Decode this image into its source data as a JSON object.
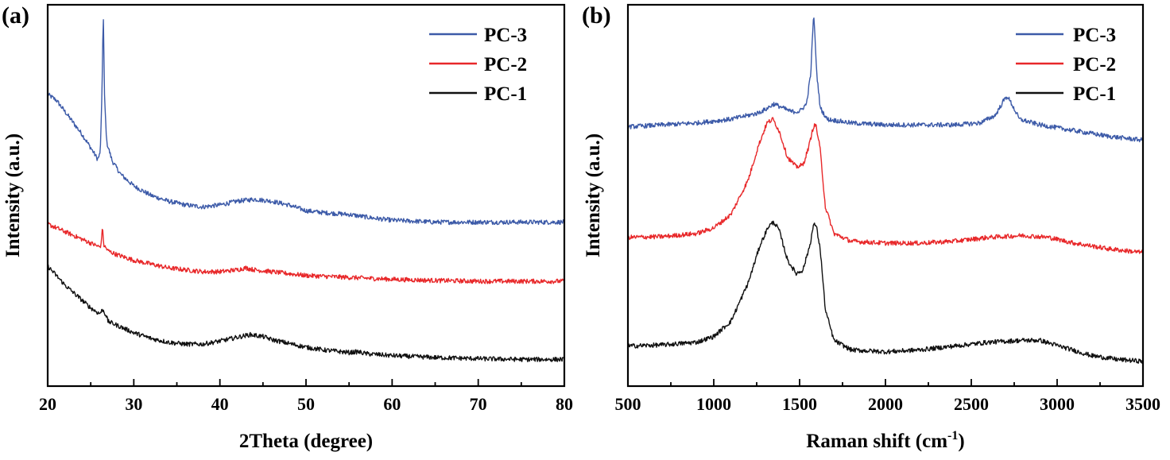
{
  "chart_data": [
    {
      "type": "line",
      "panel_label": "(a)",
      "title": "",
      "xlabel": "2Theta (degree)",
      "ylabel": "Intensity (a.u.)",
      "xlim": [
        20,
        80
      ],
      "ylim": [
        0,
        1
      ],
      "xticks": [
        20,
        30,
        40,
        50,
        60,
        70,
        80
      ],
      "xtick_labels": [
        "20",
        "30",
        "40",
        "50",
        "60",
        "70",
        "80"
      ],
      "legend_position": "top-right",
      "grid": false,
      "series": [
        {
          "name": "PC-3",
          "color": "#3c5aa8",
          "points": [
            [
              20,
              0.765
            ],
            [
              21,
              0.75
            ],
            [
              22,
              0.72
            ],
            [
              23,
              0.69
            ],
            [
              24,
              0.66
            ],
            [
              25,
              0.625
            ],
            [
              25.8,
              0.595
            ],
            [
              26.1,
              0.61
            ],
            [
              26.3,
              0.76
            ],
            [
              26.45,
              0.985
            ],
            [
              26.6,
              0.76
            ],
            [
              26.85,
              0.64
            ],
            [
              27.5,
              0.59
            ],
            [
              28.5,
              0.555
            ],
            [
              30,
              0.525
            ],
            [
              32,
              0.5
            ],
            [
              34,
              0.485
            ],
            [
              36,
              0.475
            ],
            [
              38,
              0.47
            ],
            [
              40,
              0.475
            ],
            [
              42,
              0.485
            ],
            [
              44,
              0.49
            ],
            [
              46,
              0.485
            ],
            [
              48,
              0.475
            ],
            [
              50,
              0.46
            ],
            [
              52,
              0.455
            ],
            [
              55,
              0.45
            ],
            [
              58,
              0.44
            ],
            [
              60,
              0.435
            ],
            [
              65,
              0.43
            ],
            [
              70,
              0.43
            ],
            [
              75,
              0.43
            ],
            [
              80,
              0.43
            ]
          ]
        },
        {
          "name": "PC-2",
          "color": "#e8282a",
          "points": [
            [
              20,
              0.425
            ],
            [
              21,
              0.415
            ],
            [
              22,
              0.405
            ],
            [
              23,
              0.395
            ],
            [
              24,
              0.385
            ],
            [
              25,
              0.375
            ],
            [
              26,
              0.365
            ],
            [
              26.2,
              0.37
            ],
            [
              26.35,
              0.42
            ],
            [
              26.5,
              0.37
            ],
            [
              27,
              0.355
            ],
            [
              28,
              0.345
            ],
            [
              30,
              0.33
            ],
            [
              32,
              0.32
            ],
            [
              34,
              0.31
            ],
            [
              36,
              0.305
            ],
            [
              38,
              0.3
            ],
            [
              40,
              0.3
            ],
            [
              42,
              0.305
            ],
            [
              43,
              0.31
            ],
            [
              44,
              0.305
            ],
            [
              46,
              0.3
            ],
            [
              48,
              0.295
            ],
            [
              50,
              0.29
            ],
            [
              55,
              0.285
            ],
            [
              60,
              0.28
            ],
            [
              65,
              0.277
            ],
            [
              70,
              0.275
            ],
            [
              75,
              0.275
            ],
            [
              80,
              0.275
            ]
          ]
        },
        {
          "name": "PC-1",
          "color": "#111111",
          "points": [
            [
              20,
              0.315
            ],
            [
              21,
              0.29
            ],
            [
              22,
              0.265
            ],
            [
              23,
              0.245
            ],
            [
              24,
              0.225
            ],
            [
              25,
              0.205
            ],
            [
              26,
              0.19
            ],
            [
              26.4,
              0.2
            ],
            [
              26.8,
              0.185
            ],
            [
              27,
              0.17
            ],
            [
              28,
              0.16
            ],
            [
              30,
              0.14
            ],
            [
              32,
              0.125
            ],
            [
              34,
              0.115
            ],
            [
              36,
              0.11
            ],
            [
              38,
              0.11
            ],
            [
              40,
              0.118
            ],
            [
              42,
              0.128
            ],
            [
              43.5,
              0.135
            ],
            [
              45,
              0.13
            ],
            [
              46,
              0.122
            ],
            [
              48,
              0.112
            ],
            [
              50,
              0.102
            ],
            [
              52,
              0.095
            ],
            [
              55,
              0.088
            ],
            [
              56,
              0.09
            ],
            [
              57,
              0.085
            ],
            [
              60,
              0.08
            ],
            [
              65,
              0.075
            ],
            [
              70,
              0.072
            ],
            [
              75,
              0.07
            ],
            [
              80,
              0.07
            ]
          ]
        }
      ]
    },
    {
      "type": "line",
      "panel_label": "(b)",
      "title": "",
      "xlabel": "Raman shift (cm",
      "xlabel_sup": "-1",
      "xlabel_close": ")",
      "ylabel": "Intensity (a.u.)",
      "xlim": [
        500,
        3500
      ],
      "ylim": [
        0,
        1
      ],
      "xticks": [
        500,
        1000,
        1500,
        2000,
        2500,
        3000,
        3500
      ],
      "xtick_labels": [
        "500",
        "1000",
        "1500",
        "2000",
        "2500",
        "3000",
        "3500"
      ],
      "legend_position": "top-right",
      "grid": false,
      "series": [
        {
          "name": "PC-3",
          "color": "#3c5aa8",
          "points": [
            [
              500,
              0.68
            ],
            [
              700,
              0.685
            ],
            [
              900,
              0.69
            ],
            [
              1100,
              0.7
            ],
            [
              1250,
              0.715
            ],
            [
              1300,
              0.725
            ],
            [
              1350,
              0.74
            ],
            [
              1400,
              0.73
            ],
            [
              1450,
              0.72
            ],
            [
              1500,
              0.72
            ],
            [
              1540,
              0.74
            ],
            [
              1565,
              0.82
            ],
            [
              1582,
              0.98
            ],
            [
              1600,
              0.82
            ],
            [
              1620,
              0.73
            ],
            [
              1660,
              0.7
            ],
            [
              1800,
              0.69
            ],
            [
              2000,
              0.685
            ],
            [
              2200,
              0.685
            ],
            [
              2400,
              0.685
            ],
            [
              2550,
              0.69
            ],
            [
              2640,
              0.71
            ],
            [
              2690,
              0.75
            ],
            [
              2710,
              0.76
            ],
            [
              2735,
              0.74
            ],
            [
              2780,
              0.7
            ],
            [
              2900,
              0.685
            ],
            [
              3100,
              0.67
            ],
            [
              3300,
              0.655
            ],
            [
              3500,
              0.645
            ]
          ]
        },
        {
          "name": "PC-2",
          "color": "#e8282a",
          "points": [
            [
              500,
              0.39
            ],
            [
              700,
              0.392
            ],
            [
              900,
              0.4
            ],
            [
              1000,
              0.415
            ],
            [
              1100,
              0.45
            ],
            [
              1200,
              0.54
            ],
            [
              1260,
              0.63
            ],
            [
              1310,
              0.69
            ],
            [
              1345,
              0.7
            ],
            [
              1380,
              0.67
            ],
            [
              1430,
              0.6
            ],
            [
              1480,
              0.575
            ],
            [
              1520,
              0.58
            ],
            [
              1555,
              0.63
            ],
            [
              1580,
              0.68
            ],
            [
              1595,
              0.685
            ],
            [
              1620,
              0.62
            ],
            [
              1650,
              0.47
            ],
            [
              1700,
              0.4
            ],
            [
              1800,
              0.38
            ],
            [
              2000,
              0.375
            ],
            [
              2200,
              0.375
            ],
            [
              2400,
              0.38
            ],
            [
              2600,
              0.39
            ],
            [
              2800,
              0.395
            ],
            [
              2950,
              0.39
            ],
            [
              3100,
              0.375
            ],
            [
              3300,
              0.36
            ],
            [
              3500,
              0.35
            ]
          ]
        },
        {
          "name": "PC-1",
          "color": "#111111",
          "points": [
            [
              500,
              0.105
            ],
            [
              700,
              0.108
            ],
            [
              900,
              0.115
            ],
            [
              1000,
              0.13
            ],
            [
              1100,
              0.17
            ],
            [
              1200,
              0.27
            ],
            [
              1270,
              0.37
            ],
            [
              1320,
              0.42
            ],
            [
              1350,
              0.43
            ],
            [
              1380,
              0.41
            ],
            [
              1430,
              0.33
            ],
            [
              1480,
              0.295
            ],
            [
              1520,
              0.305
            ],
            [
              1560,
              0.37
            ],
            [
              1580,
              0.42
            ],
            [
              1595,
              0.425
            ],
            [
              1620,
              0.36
            ],
            [
              1650,
              0.2
            ],
            [
              1700,
              0.12
            ],
            [
              1800,
              0.095
            ],
            [
              2000,
              0.09
            ],
            [
              2200,
              0.095
            ],
            [
              2400,
              0.105
            ],
            [
              2600,
              0.115
            ],
            [
              2800,
              0.12
            ],
            [
              2900,
              0.12
            ],
            [
              3050,
              0.1
            ],
            [
              3200,
              0.08
            ],
            [
              3350,
              0.07
            ],
            [
              3500,
              0.065
            ]
          ]
        }
      ]
    }
  ]
}
